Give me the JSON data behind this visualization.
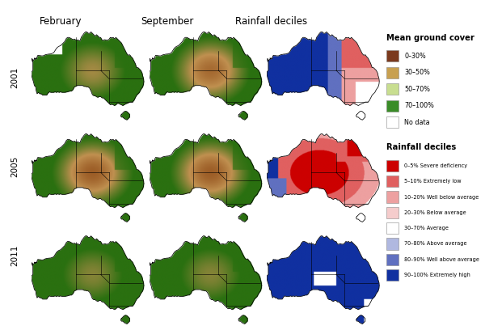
{
  "title_col1": "February",
  "title_col2": "September",
  "title_col3": "Rainfall deciles",
  "row_labels": [
    "2001",
    "2005",
    "2011"
  ],
  "background_color": "#ffffff",
  "ground_cover_title": "Mean ground cover",
  "ground_cover_entries": [
    {
      "label": "0–30%",
      "color": "#7b3a1e"
    },
    {
      "label": "30–50%",
      "color": "#c8a050"
    },
    {
      "label": "50–70%",
      "color": "#c8de90"
    },
    {
      "label": "70–100%",
      "color": "#3a8c28"
    },
    {
      "label": "No data",
      "color": "#ffffff"
    }
  ],
  "rainfall_deciles_title": "Rainfall deciles",
  "rainfall_entries": [
    {
      "label": "0–5% Severe deficiency",
      "color": "#cc0000"
    },
    {
      "label": "5–10% Extremely low",
      "color": "#e06060"
    },
    {
      "label": "10–20% Well below average",
      "color": "#eda0a0"
    },
    {
      "label": "20–30% Below average",
      "color": "#f5cccc"
    },
    {
      "label": "30–70% Average",
      "color": "#ffffff"
    },
    {
      "label": "70–80% Above average",
      "color": "#b0b8e0"
    },
    {
      "label": "80–90% Well above average",
      "color": "#6070c0"
    },
    {
      "label": "90–100% Extremely high",
      "color": "#1030a0"
    }
  ],
  "figsize": [
    6.0,
    4.08
  ],
  "dpi": 100
}
